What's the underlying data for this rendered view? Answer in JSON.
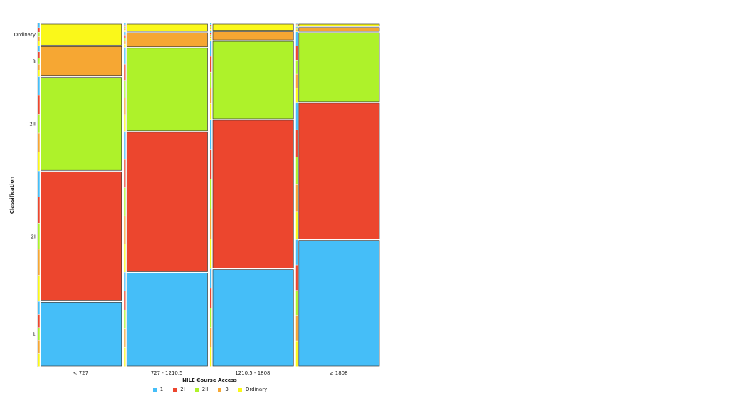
{
  "chart_data": {
    "type": "mosaic",
    "xlabel": "NILE Course Access",
    "ylabel": "Classification",
    "categories": [
      "< 727",
      "727 - 1210.5",
      "1210.5 - 1808",
      "≥ 1808"
    ],
    "levels": [
      "1",
      "2I",
      "2II",
      "3",
      "Ordinary"
    ],
    "colors": {
      "1": "#45BEF8",
      "2I": "#EC462E",
      "2II": "#AEF22A",
      "3": "#F6A733",
      "Ordinary": "#FAF81A"
    },
    "column_shares": [
      0.25,
      0.25,
      0.25,
      0.25
    ],
    "proportions": [
      {
        "category": "< 727",
        "values": {
          "1": 0.19,
          "2I": 0.38,
          "2II": 0.275,
          "3": 0.09,
          "Ordinary": 0.065
        }
      },
      {
        "category": "727 - 1210.5",
        "values": {
          "1": 0.275,
          "2I": 0.41,
          "2II": 0.245,
          "3": 0.045,
          "Ordinary": 0.025
        }
      },
      {
        "category": "1210.5 - 1808",
        "values": {
          "1": 0.285,
          "2I": 0.435,
          "2II": 0.23,
          "3": 0.028,
          "Ordinary": 0.022
        }
      },
      {
        "category": "≥ 1808",
        "values": {
          "1": 0.37,
          "2I": 0.4,
          "2II": 0.205,
          "3": 0.015,
          "Ordinary": 0.01
        }
      }
    ],
    "y_tick_labels": [
      "1",
      "2I",
      "2II",
      "3",
      "Ordinary"
    ],
    "legend": [
      "1",
      "2I",
      "2II",
      "3",
      "Ordinary"
    ],
    "legend_position": "bottom",
    "grid": false
  }
}
